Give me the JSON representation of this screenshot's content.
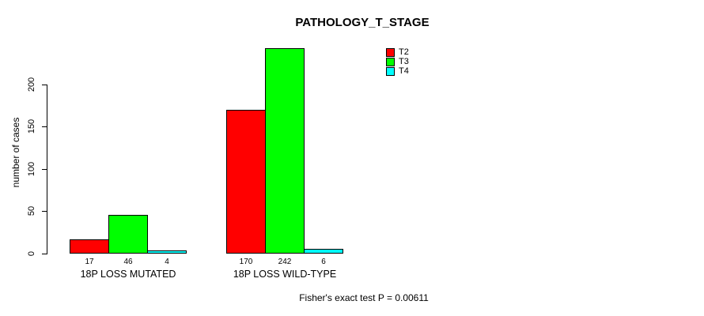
{
  "chart_data": {
    "type": "bar",
    "title": "PATHOLOGY_T_STAGE",
    "categories": [
      "18P LOSS MUTATED",
      "18P LOSS WILD-TYPE"
    ],
    "series": [
      {
        "name": "T2",
        "color": "#FF0000",
        "values": [
          17,
          170
        ]
      },
      {
        "name": "T3",
        "color": "#00FF00",
        "values": [
          46,
          242
        ]
      },
      {
        "name": "T4",
        "color": "#00FFFF",
        "values": [
          4,
          6
        ]
      }
    ],
    "show_value_labels": true,
    "ylabel": "number of cases",
    "xlabel": "",
    "ylim": [
      0,
      250
    ],
    "yticks": [
      0,
      50,
      100,
      150,
      200
    ],
    "grid": false,
    "legend_position": "top-right",
    "annotation": "Fisher's exact test P = 0.00611"
  },
  "colors": {
    "background": "#FFFFFF",
    "axis": "#000000",
    "text": "#000000"
  }
}
